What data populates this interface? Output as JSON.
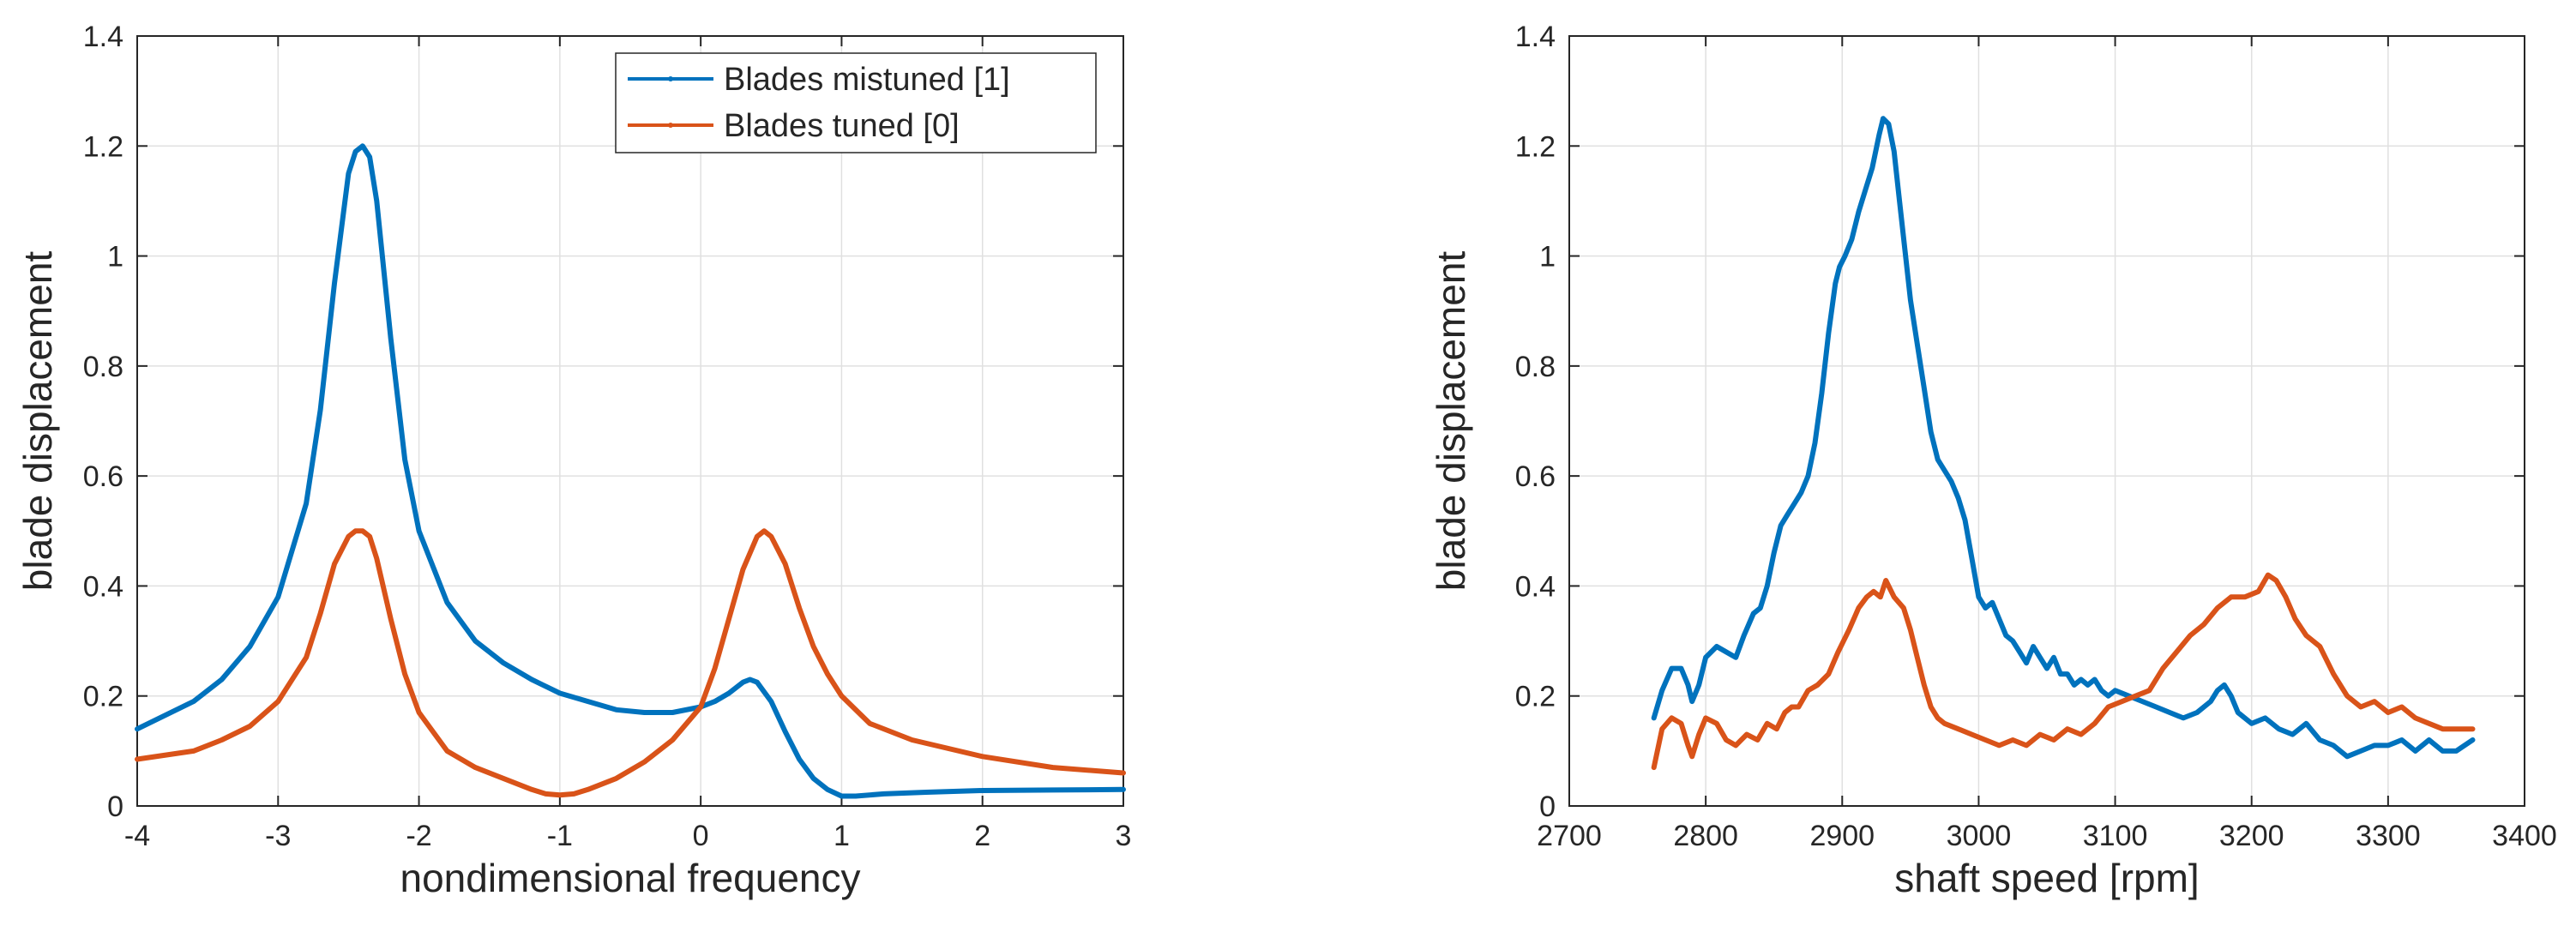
{
  "colors": {
    "mistuned": "#0072BD",
    "tuned": "#D95319",
    "grid": "#e0e0e0",
    "axis": "#262626"
  },
  "chart_data": [
    {
      "type": "line",
      "xlabel": "nondimensional frequency",
      "ylabel": "blade displacement",
      "xlim": [
        -4,
        3
      ],
      "ylim": [
        0,
        1.4
      ],
      "xticks": [
        "-4",
        "-3",
        "-2",
        "-1",
        "0",
        "1",
        "2",
        "3"
      ],
      "yticks": [
        "0",
        "0.2",
        "0.4",
        "0.6",
        "0.8",
        "1",
        "1.2",
        "1.4"
      ],
      "grid": true,
      "legend": {
        "position": "top-right",
        "entries": [
          "Blades mistuned [1]",
          "Blades tuned [0]"
        ]
      },
      "series": [
        {
          "name": "Blades mistuned [1]",
          "x": [
            -4,
            -3.6,
            -3.4,
            -3.2,
            -3.0,
            -2.8,
            -2.7,
            -2.6,
            -2.5,
            -2.45,
            -2.4,
            -2.35,
            -2.3,
            -2.2,
            -2.1,
            -2.0,
            -1.8,
            -1.6,
            -1.4,
            -1.2,
            -1.0,
            -0.8,
            -0.6,
            -0.4,
            -0.2,
            0.0,
            0.1,
            0.2,
            0.3,
            0.35,
            0.4,
            0.5,
            0.6,
            0.7,
            0.8,
            0.9,
            1.0,
            1.1,
            1.3,
            1.6,
            2.0,
            2.5,
            3.0
          ],
          "y": [
            0.14,
            0.19,
            0.23,
            0.29,
            0.38,
            0.55,
            0.72,
            0.95,
            1.15,
            1.19,
            1.2,
            1.18,
            1.1,
            0.85,
            0.63,
            0.5,
            0.37,
            0.3,
            0.26,
            0.23,
            0.205,
            0.19,
            0.175,
            0.17,
            0.17,
            0.18,
            0.19,
            0.205,
            0.225,
            0.23,
            0.225,
            0.19,
            0.135,
            0.085,
            0.05,
            0.03,
            0.018,
            0.018,
            0.022,
            0.025,
            0.028,
            0.029,
            0.03
          ]
        },
        {
          "name": "Blades tuned [0]",
          "x": [
            -4,
            -3.6,
            -3.4,
            -3.2,
            -3.0,
            -2.8,
            -2.7,
            -2.6,
            -2.5,
            -2.45,
            -2.4,
            -2.35,
            -2.3,
            -2.2,
            -2.1,
            -2.0,
            -1.8,
            -1.6,
            -1.4,
            -1.2,
            -1.1,
            -1.0,
            -0.9,
            -0.8,
            -0.6,
            -0.4,
            -0.2,
            0.0,
            0.1,
            0.2,
            0.3,
            0.4,
            0.45,
            0.5,
            0.6,
            0.7,
            0.8,
            0.9,
            1.0,
            1.2,
            1.5,
            2.0,
            2.5,
            3.0
          ],
          "y": [
            0.085,
            0.1,
            0.12,
            0.145,
            0.19,
            0.27,
            0.35,
            0.44,
            0.49,
            0.5,
            0.5,
            0.49,
            0.45,
            0.34,
            0.24,
            0.17,
            0.1,
            0.07,
            0.05,
            0.03,
            0.022,
            0.02,
            0.022,
            0.03,
            0.05,
            0.08,
            0.12,
            0.18,
            0.25,
            0.34,
            0.43,
            0.49,
            0.5,
            0.49,
            0.44,
            0.36,
            0.29,
            0.24,
            0.2,
            0.15,
            0.12,
            0.09,
            0.07,
            0.06
          ]
        }
      ]
    },
    {
      "type": "line",
      "xlabel": "shaft speed [rpm]",
      "ylabel": "blade displacement",
      "xlim": [
        2700,
        3400
      ],
      "ylim": [
        0,
        1.4
      ],
      "xticks": [
        "2700",
        "2800",
        "2900",
        "3000",
        "3100",
        "3200",
        "3300",
        "3400"
      ],
      "yticks": [
        "0",
        "0.2",
        "0.4",
        "0.6",
        "0.8",
        "1",
        "1.2",
        "1.4"
      ],
      "grid": true,
      "series": [
        {
          "name": "Blades mistuned [1]",
          "x": [
            2762,
            2768,
            2775,
            2782,
            2787,
            2790,
            2795,
            2800,
            2808,
            2815,
            2822,
            2828,
            2835,
            2840,
            2845,
            2850,
            2855,
            2860,
            2865,
            2870,
            2875,
            2880,
            2885,
            2890,
            2895,
            2898,
            2902,
            2907,
            2912,
            2917,
            2922,
            2927,
            2930,
            2934,
            2938,
            2942,
            2946,
            2950,
            2955,
            2960,
            2965,
            2970,
            2975,
            2980,
            2985,
            2990,
            2995,
            3000,
            3005,
            3010,
            3015,
            3020,
            3025,
            3030,
            3035,
            3040,
            3045,
            3050,
            3055,
            3060,
            3065,
            3070,
            3075,
            3080,
            3085,
            3090,
            3095,
            3100,
            3110,
            3120,
            3130,
            3140,
            3150,
            3160,
            3170,
            3175,
            3180,
            3185,
            3190,
            3200,
            3210,
            3220,
            3230,
            3240,
            3250,
            3260,
            3270,
            3280,
            3290,
            3300,
            3310,
            3320,
            3330,
            3340,
            3350,
            3362
          ],
          "y": [
            0.16,
            0.21,
            0.25,
            0.25,
            0.22,
            0.19,
            0.22,
            0.27,
            0.29,
            0.28,
            0.27,
            0.31,
            0.35,
            0.36,
            0.4,
            0.46,
            0.51,
            0.53,
            0.55,
            0.57,
            0.6,
            0.66,
            0.75,
            0.86,
            0.95,
            0.98,
            1.0,
            1.03,
            1.08,
            1.12,
            1.16,
            1.22,
            1.25,
            1.24,
            1.19,
            1.1,
            1.01,
            0.92,
            0.84,
            0.76,
            0.68,
            0.63,
            0.61,
            0.59,
            0.56,
            0.52,
            0.45,
            0.38,
            0.36,
            0.37,
            0.34,
            0.31,
            0.3,
            0.28,
            0.26,
            0.29,
            0.27,
            0.25,
            0.27,
            0.24,
            0.24,
            0.22,
            0.23,
            0.22,
            0.23,
            0.21,
            0.2,
            0.21,
            0.2,
            0.19,
            0.18,
            0.17,
            0.16,
            0.17,
            0.19,
            0.21,
            0.22,
            0.2,
            0.17,
            0.15,
            0.16,
            0.14,
            0.13,
            0.15,
            0.12,
            0.11,
            0.09,
            0.1,
            0.11,
            0.11,
            0.12,
            0.1,
            0.12,
            0.1,
            0.1,
            0.12
          ]
        },
        {
          "name": "Blades tuned [0]",
          "x": [
            2762,
            2768,
            2775,
            2782,
            2787,
            2790,
            2795,
            2800,
            2808,
            2815,
            2822,
            2830,
            2838,
            2845,
            2852,
            2858,
            2863,
            2868,
            2875,
            2882,
            2890,
            2897,
            2905,
            2912,
            2918,
            2923,
            2928,
            2932,
            2938,
            2945,
            2950,
            2955,
            2960,
            2965,
            2970,
            2975,
            2985,
            2995,
            3005,
            3015,
            3025,
            3035,
            3045,
            3055,
            3065,
            3075,
            3085,
            3095,
            3105,
            3115,
            3125,
            3135,
            3145,
            3155,
            3165,
            3175,
            3185,
            3195,
            3205,
            3212,
            3218,
            3225,
            3232,
            3240,
            3250,
            3260,
            3270,
            3280,
            3290,
            3300,
            3310,
            3320,
            3330,
            3340,
            3350,
            3362
          ],
          "y": [
            0.07,
            0.14,
            0.16,
            0.15,
            0.11,
            0.09,
            0.13,
            0.16,
            0.15,
            0.12,
            0.11,
            0.13,
            0.12,
            0.15,
            0.14,
            0.17,
            0.18,
            0.18,
            0.21,
            0.22,
            0.24,
            0.28,
            0.32,
            0.36,
            0.38,
            0.39,
            0.38,
            0.41,
            0.38,
            0.36,
            0.32,
            0.27,
            0.22,
            0.18,
            0.16,
            0.15,
            0.14,
            0.13,
            0.12,
            0.11,
            0.12,
            0.11,
            0.13,
            0.12,
            0.14,
            0.13,
            0.15,
            0.18,
            0.19,
            0.2,
            0.21,
            0.25,
            0.28,
            0.31,
            0.33,
            0.36,
            0.38,
            0.38,
            0.39,
            0.42,
            0.41,
            0.38,
            0.34,
            0.31,
            0.29,
            0.24,
            0.2,
            0.18,
            0.19,
            0.17,
            0.18,
            0.16,
            0.15,
            0.14,
            0.14,
            0.14
          ]
        }
      ]
    }
  ]
}
